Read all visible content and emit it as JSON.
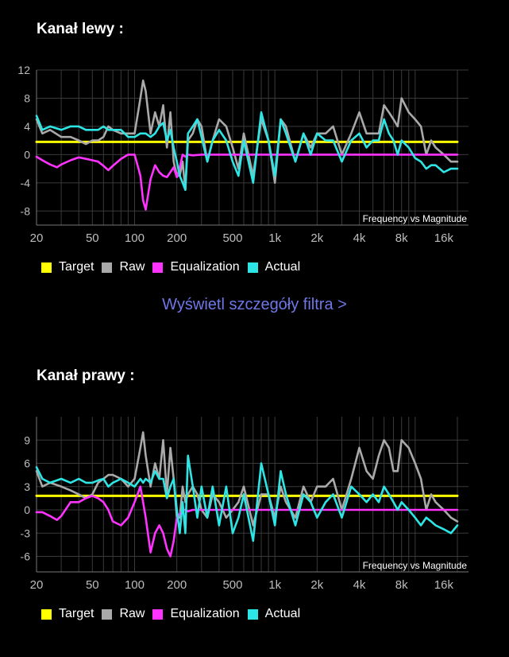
{
  "channels": [
    {
      "title": "Kanał lewy  :",
      "chart_data": {
        "type": "line",
        "annotation": "Frequency vs Magnitude",
        "x_scale": "log",
        "xlim": [
          20,
          24000
        ],
        "ylim": [
          -10,
          12
        ],
        "y_ticks": [
          12,
          8,
          4,
          0,
          -4,
          -8
        ],
        "x_ticks": [
          {
            "value": 20,
            "label": "20"
          },
          {
            "value": 50,
            "label": "50"
          },
          {
            "value": 100,
            "label": "100"
          },
          {
            "value": 200,
            "label": "200"
          },
          {
            "value": 500,
            "label": "500"
          },
          {
            "value": 1000,
            "label": "1k"
          },
          {
            "value": 2000,
            "label": "2k"
          },
          {
            "value": 4000,
            "label": "4k"
          },
          {
            "value": 8000,
            "label": "8k"
          },
          {
            "value": 16000,
            "label": "16k"
          }
        ],
        "grid": true,
        "series": [
          {
            "name": "Target",
            "color": "#ffff00",
            "x": [
              20,
              20000
            ],
            "y": [
              1.8,
              1.8
            ]
          },
          {
            "name": "Raw",
            "color": "#a9a9a9",
            "x": [
              20,
              22,
              25,
              30,
              35,
              40,
              45,
              50,
              55,
              60,
              65,
              70,
              80,
              90,
              100,
              110,
              115,
              120,
              130,
              140,
              150,
              160,
              170,
              180,
              190,
              200,
              210,
              220,
              230,
              240,
              260,
              280,
              300,
              330,
              360,
              400,
              450,
              500,
              550,
              600,
              700,
              800,
              900,
              1000,
              1100,
              1200,
              1400,
              1600,
              1800,
              2000,
              2300,
              2600,
              3000,
              3500,
              4000,
              4500,
              5000,
              5500,
              6000,
              6500,
              7000,
              7500,
              8000,
              9000,
              10000,
              11000,
              12000,
              13000,
              14000,
              16000,
              18000,
              20000
            ],
            "y": [
              5,
              3,
              3.5,
              2.5,
              2.5,
              2,
              1.5,
              2,
              2,
              2.5,
              4,
              3.5,
              3,
              3,
              3,
              8,
              10.5,
              9,
              3,
              6,
              4,
              7,
              1,
              6,
              -1,
              -3,
              -3,
              -1,
              -5,
              2,
              3,
              5,
              4,
              -1,
              2,
              5,
              4,
              1,
              -2,
              3,
              -3,
              5,
              2,
              -4,
              5,
              4,
              -1,
              3,
              1,
              3,
              3,
              4,
              0,
              3,
              6,
              3,
              3,
              3,
              7,
              6,
              5,
              4,
              8,
              6,
              5,
              4,
              0,
              2,
              1,
              0,
              -1,
              -1
            ]
          },
          {
            "name": "Equalization",
            "color": "#ff33ff",
            "x": [
              20,
              22,
              25,
              28,
              30,
              35,
              40,
              45,
              50,
              55,
              60,
              65,
              70,
              80,
              90,
              100,
              105,
              110,
              115,
              120,
              130,
              140,
              150,
              160,
              170,
              180,
              190,
              200,
              210,
              220,
              230,
              240,
              260,
              300,
              400,
              1000,
              5000,
              20000
            ],
            "y": [
              -0.3,
              -0.8,
              -1.4,
              -1.8,
              -1.4,
              -0.8,
              -0.4,
              -0.6,
              -0.8,
              -1,
              -1.6,
              -2.2,
              -1.6,
              -0.6,
              0,
              0,
              -1.5,
              -3,
              -6.5,
              -7.8,
              -3.5,
              -1.5,
              -2.5,
              -3,
              -3.2,
              -2.5,
              -1.8,
              -3.2,
              -1.8,
              0,
              -0.3,
              0,
              -0.1,
              0,
              0,
              0,
              0,
              0
            ]
          },
          {
            "name": "Actual",
            "color": "#2ee5e5",
            "x": [
              20,
              22,
              25,
              30,
              35,
              40,
              45,
              50,
              55,
              60,
              65,
              70,
              80,
              90,
              100,
              110,
              115,
              120,
              130,
              140,
              150,
              160,
              170,
              180,
              190,
              200,
              210,
              220,
              230,
              240,
              260,
              280,
              300,
              330,
              360,
              400,
              450,
              500,
              550,
              600,
              700,
              800,
              900,
              1000,
              1100,
              1200,
              1400,
              1600,
              1800,
              2000,
              2300,
              2600,
              3000,
              3500,
              4000,
              4500,
              5000,
              5500,
              6000,
              6500,
              7000,
              7500,
              8000,
              9000,
              10000,
              11000,
              12000,
              13000,
              14000,
              16000,
              18000,
              20000
            ],
            "y": [
              5.5,
              3.5,
              4,
              3.5,
              4,
              4,
              3.5,
              3.5,
              3.5,
              4,
              3.5,
              3.5,
              3.5,
              2.5,
              2.5,
              3,
              3,
              3,
              2.5,
              3,
              4,
              4.5,
              2,
              3.5,
              1,
              -1,
              -3,
              -4,
              -5,
              3,
              4,
              5,
              2.5,
              -1,
              2,
              3.5,
              2,
              -1,
              -3,
              2,
              -4,
              6,
              2,
              -3,
              5,
              3,
              -1,
              3,
              0,
              3,
              2,
              2,
              -1,
              2,
              3,
              1,
              2,
              2,
              5,
              3,
              2,
              0,
              2,
              1,
              -0.5,
              -1,
              -2,
              -1.5,
              -1.5,
              -2.5,
              -2,
              -2
            ]
          }
        ]
      }
    },
    {
      "title": "Kanał prawy  :",
      "chart_data": {
        "type": "line",
        "annotation": "Frequency vs Magnitude",
        "x_scale": "log",
        "xlim": [
          20,
          24000
        ],
        "ylim": [
          -8,
          12
        ],
        "y_ticks": [
          9,
          6,
          3,
          0,
          -3,
          -6
        ],
        "x_ticks": [
          {
            "value": 20,
            "label": "20"
          },
          {
            "value": 50,
            "label": "50"
          },
          {
            "value": 100,
            "label": "100"
          },
          {
            "value": 200,
            "label": "200"
          },
          {
            "value": 500,
            "label": "500"
          },
          {
            "value": 1000,
            "label": "1k"
          },
          {
            "value": 2000,
            "label": "2k"
          },
          {
            "value": 4000,
            "label": "4k"
          },
          {
            "value": 8000,
            "label": "8k"
          },
          {
            "value": 16000,
            "label": "16k"
          }
        ],
        "grid": true,
        "series": [
          {
            "name": "Target",
            "color": "#ffff00",
            "x": [
              20,
              20000
            ],
            "y": [
              1.8,
              1.8
            ]
          },
          {
            "name": "Raw",
            "color": "#a9a9a9",
            "x": [
              20,
              22,
              25,
              30,
              35,
              40,
              45,
              50,
              55,
              60,
              65,
              70,
              80,
              90,
              100,
              110,
              115,
              120,
              130,
              140,
              150,
              160,
              170,
              180,
              190,
              200,
              210,
              220,
              230,
              240,
              260,
              280,
              300,
              330,
              360,
              400,
              450,
              500,
              550,
              600,
              700,
              800,
              900,
              1000,
              1100,
              1200,
              1400,
              1600,
              1800,
              2000,
              2300,
              2600,
              3000,
              3500,
              4000,
              4500,
              5000,
              5500,
              6000,
              6500,
              7000,
              7500,
              8000,
              9000,
              10000,
              11000,
              12000,
              13000,
              14000,
              16000,
              18000,
              20000
            ],
            "y": [
              5,
              3,
              3.5,
              3,
              2.5,
              2,
              1.5,
              2,
              3.5,
              4,
              4.5,
              4.5,
              4,
              3,
              4,
              8,
              10,
              7,
              3,
              6,
              4,
              9,
              2,
              8,
              4,
              -1,
              -1,
              3,
              1,
              2,
              3,
              2,
              0,
              -1,
              2,
              1,
              -1,
              0,
              1,
              3,
              -2,
              2,
              2,
              -1,
              3,
              1,
              -1,
              3,
              1,
              3,
              3,
              4,
              0,
              4,
              8,
              5,
              4,
              7,
              9,
              8,
              5,
              5,
              9,
              8,
              6,
              4,
              0,
              2,
              1,
              0,
              -1,
              -1.5
            ]
          },
          {
            "name": "Equalization",
            "color": "#ff33ff",
            "x": [
              20,
              22,
              25,
              28,
              30,
              35,
              40,
              45,
              50,
              55,
              60,
              65,
              70,
              80,
              90,
              100,
              105,
              110,
              115,
              120,
              130,
              140,
              150,
              160,
              170,
              180,
              190,
              200,
              210,
              220,
              230,
              240,
              260,
              300,
              400,
              1000,
              5000,
              20000
            ],
            "y": [
              -0.3,
              -0.3,
              -0.8,
              -1.3,
              -0.8,
              1,
              1,
              1.5,
              1.8,
              1.5,
              1,
              0,
              -1.5,
              -2,
              -1,
              1,
              2,
              3,
              1,
              -1,
              -5.5,
              -3,
              -2,
              -3,
              -5,
              -6,
              -4,
              -1,
              -0.5,
              0,
              0,
              -0.2,
              0,
              0,
              0,
              0,
              0,
              0
            ]
          },
          {
            "name": "Actual",
            "color": "#2ee5e5",
            "x": [
              20,
              22,
              25,
              30,
              35,
              40,
              45,
              50,
              55,
              60,
              65,
              70,
              80,
              90,
              100,
              110,
              115,
              120,
              130,
              140,
              150,
              160,
              170,
              180,
              190,
              200,
              210,
              220,
              230,
              240,
              260,
              280,
              300,
              330,
              360,
              400,
              450,
              500,
              550,
              600,
              700,
              800,
              900,
              1000,
              1100,
              1200,
              1400,
              1600,
              1800,
              2000,
              2300,
              2600,
              3000,
              3500,
              4000,
              4500,
              5000,
              5500,
              6000,
              6500,
              7000,
              7500,
              8000,
              9000,
              10000,
              11000,
              12000,
              13000,
              14000,
              16000,
              18000,
              20000
            ],
            "y": [
              5.5,
              4,
              3.5,
              4,
              3.5,
              4,
              3.5,
              3.5,
              3.8,
              4,
              3,
              3.5,
              4,
              3.5,
              3,
              4,
              3.5,
              4,
              3.5,
              5,
              4,
              4,
              1.5,
              3,
              4,
              0,
              -3,
              1,
              -3,
              7,
              3,
              -1,
              3,
              -1,
              3,
              -2,
              3,
              -3,
              -1,
              2,
              -4,
              6,
              2,
              -2,
              5,
              2,
              -2,
              2,
              1,
              -1,
              1,
              2,
              -1,
              3,
              2,
              1,
              2,
              1,
              3,
              2,
              1,
              0,
              1,
              0,
              -1,
              -2,
              -1,
              -1.5,
              -2,
              -2.5,
              -3,
              -2
            ]
          }
        ]
      }
    }
  ],
  "filter_link": "Wyświetl szczegóły filtra >",
  "legend": [
    {
      "label": "Target",
      "color": "#ffff00"
    },
    {
      "label": "Raw",
      "color": "#a9a9a9"
    },
    {
      "label": "Equalization",
      "color": "#ff33ff"
    },
    {
      "label": "Actual",
      "color": "#2ee5e5"
    }
  ]
}
